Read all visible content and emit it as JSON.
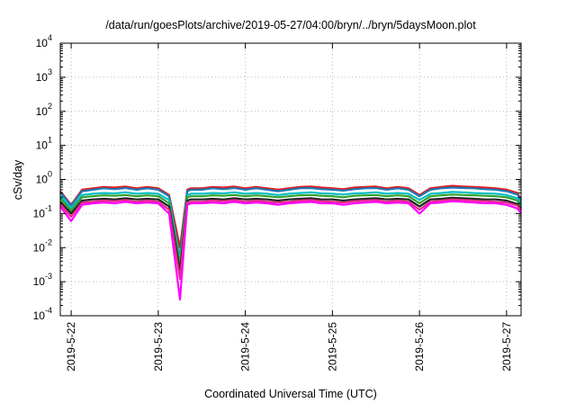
{
  "chart_data": {
    "type": "line",
    "title": "/data/run/goesPlots/archive/2019-05-27/04:00/bryn/../bryn/5daysMoon.plot",
    "xlabel": "Coordinated Universal Time (UTC)",
    "ylabel": "cSv/day",
    "yscale": "log",
    "ylim": [
      0.0001,
      10000
    ],
    "xlim": [
      "2019-05-21T21:00",
      "2019-05-27T04:00"
    ],
    "grid": true,
    "y_ticks": [
      {
        "base": "10",
        "exp": "-4",
        "value": 0.0001
      },
      {
        "base": "10",
        "exp": "-3",
        "value": 0.001
      },
      {
        "base": "10",
        "exp": "-2",
        "value": 0.01
      },
      {
        "base": "10",
        "exp": "-1",
        "value": 0.1
      },
      {
        "base": "10",
        "exp": "0",
        "value": 1
      },
      {
        "base": "10",
        "exp": "1",
        "value": 10
      },
      {
        "base": "10",
        "exp": "2",
        "value": 100
      },
      {
        "base": "10",
        "exp": "3",
        "value": 1000
      },
      {
        "base": "10",
        "exp": "4",
        "value": 10000
      }
    ],
    "x_ticks": [
      "2019-5-22",
      "2019-5-23",
      "2019-5-24",
      "2019-5-25",
      "2019-5-26",
      "2019-5-27"
    ],
    "x_hours": [
      -3,
      0,
      3,
      6,
      9,
      12,
      15,
      18,
      21,
      24,
      27,
      30,
      32,
      33,
      36,
      39,
      42,
      45,
      48,
      51,
      54,
      57,
      60,
      63,
      66,
      69,
      72,
      75,
      78,
      81,
      84,
      87,
      90,
      93,
      96,
      99,
      102,
      105,
      108,
      111,
      114,
      117,
      120,
      123,
      124
    ],
    "series": [
      {
        "color": "#e41a1c",
        "values": [
          0.45,
          0.18,
          0.5,
          0.55,
          0.6,
          0.58,
          0.62,
          0.55,
          0.6,
          0.55,
          0.35,
          0.01,
          0.5,
          0.55,
          0.55,
          0.6,
          0.58,
          0.62,
          0.55,
          0.6,
          0.55,
          0.5,
          0.55,
          0.6,
          0.62,
          0.58,
          0.55,
          0.52,
          0.58,
          0.6,
          0.62,
          0.55,
          0.6,
          0.55,
          0.35,
          0.55,
          0.6,
          0.65,
          0.62,
          0.6,
          0.58,
          0.55,
          0.5,
          0.4,
          0.25
        ]
      },
      {
        "color": "#1f78b4",
        "values": [
          0.42,
          0.17,
          0.45,
          0.5,
          0.55,
          0.52,
          0.56,
          0.5,
          0.55,
          0.5,
          0.32,
          0.005,
          0.45,
          0.5,
          0.5,
          0.55,
          0.52,
          0.56,
          0.5,
          0.55,
          0.5,
          0.45,
          0.5,
          0.55,
          0.56,
          0.52,
          0.5,
          0.47,
          0.52,
          0.55,
          0.56,
          0.5,
          0.55,
          0.5,
          0.32,
          0.5,
          0.55,
          0.58,
          0.56,
          0.55,
          0.52,
          0.5,
          0.45,
          0.36,
          0.22
        ]
      },
      {
        "color": "#00bfc4",
        "values": [
          0.33,
          0.14,
          0.35,
          0.38,
          0.4,
          0.39,
          0.42,
          0.38,
          0.4,
          0.38,
          0.25,
          0.004,
          0.35,
          0.38,
          0.38,
          0.4,
          0.39,
          0.42,
          0.38,
          0.4,
          0.38,
          0.35,
          0.38,
          0.4,
          0.42,
          0.39,
          0.38,
          0.36,
          0.39,
          0.4,
          0.42,
          0.38,
          0.4,
          0.38,
          0.25,
          0.38,
          0.4,
          0.43,
          0.42,
          0.4,
          0.39,
          0.38,
          0.35,
          0.28,
          0.17
        ]
      },
      {
        "color": "#33a02c",
        "values": [
          0.28,
          0.12,
          0.3,
          0.32,
          0.34,
          0.33,
          0.35,
          0.32,
          0.34,
          0.32,
          0.2,
          0.003,
          0.3,
          0.32,
          0.32,
          0.34,
          0.33,
          0.35,
          0.32,
          0.34,
          0.32,
          0.3,
          0.32,
          0.34,
          0.35,
          0.33,
          0.32,
          0.3,
          0.33,
          0.34,
          0.35,
          0.32,
          0.34,
          0.32,
          0.2,
          0.32,
          0.34,
          0.36,
          0.35,
          0.34,
          0.33,
          0.32,
          0.3,
          0.24,
          0.15
        ]
      },
      {
        "color": "#222222",
        "values": [
          0.22,
          0.1,
          0.24,
          0.26,
          0.27,
          0.26,
          0.28,
          0.26,
          0.27,
          0.26,
          0.16,
          0.002,
          0.24,
          0.26,
          0.26,
          0.27,
          0.26,
          0.28,
          0.26,
          0.27,
          0.26,
          0.24,
          0.26,
          0.27,
          0.28,
          0.26,
          0.26,
          0.24,
          0.26,
          0.27,
          0.28,
          0.26,
          0.27,
          0.26,
          0.16,
          0.26,
          0.27,
          0.29,
          0.28,
          0.27,
          0.26,
          0.26,
          0.24,
          0.19,
          0.13
        ]
      },
      {
        "color": "#e7298a",
        "values": [
          0.19,
          0.08,
          0.21,
          0.22,
          0.24,
          0.23,
          0.25,
          0.22,
          0.24,
          0.22,
          0.13,
          0.0012,
          0.21,
          0.22,
          0.22,
          0.24,
          0.23,
          0.25,
          0.22,
          0.24,
          0.22,
          0.21,
          0.22,
          0.24,
          0.25,
          0.23,
          0.22,
          0.21,
          0.23,
          0.24,
          0.25,
          0.22,
          0.24,
          0.22,
          0.13,
          0.22,
          0.24,
          0.26,
          0.25,
          0.24,
          0.23,
          0.22,
          0.21,
          0.17,
          0.12
        ]
      },
      {
        "color": "#ff00ff",
        "values": [
          0.16,
          0.06,
          0.18,
          0.2,
          0.21,
          0.2,
          0.22,
          0.2,
          0.21,
          0.2,
          0.1,
          0.0003,
          0.18,
          0.2,
          0.2,
          0.21,
          0.2,
          0.22,
          0.2,
          0.21,
          0.2,
          0.18,
          0.2,
          0.21,
          0.22,
          0.2,
          0.2,
          0.18,
          0.2,
          0.21,
          0.22,
          0.2,
          0.21,
          0.2,
          0.1,
          0.2,
          0.21,
          0.23,
          0.22,
          0.21,
          0.2,
          0.2,
          0.18,
          0.14,
          0.1
        ]
      }
    ]
  }
}
